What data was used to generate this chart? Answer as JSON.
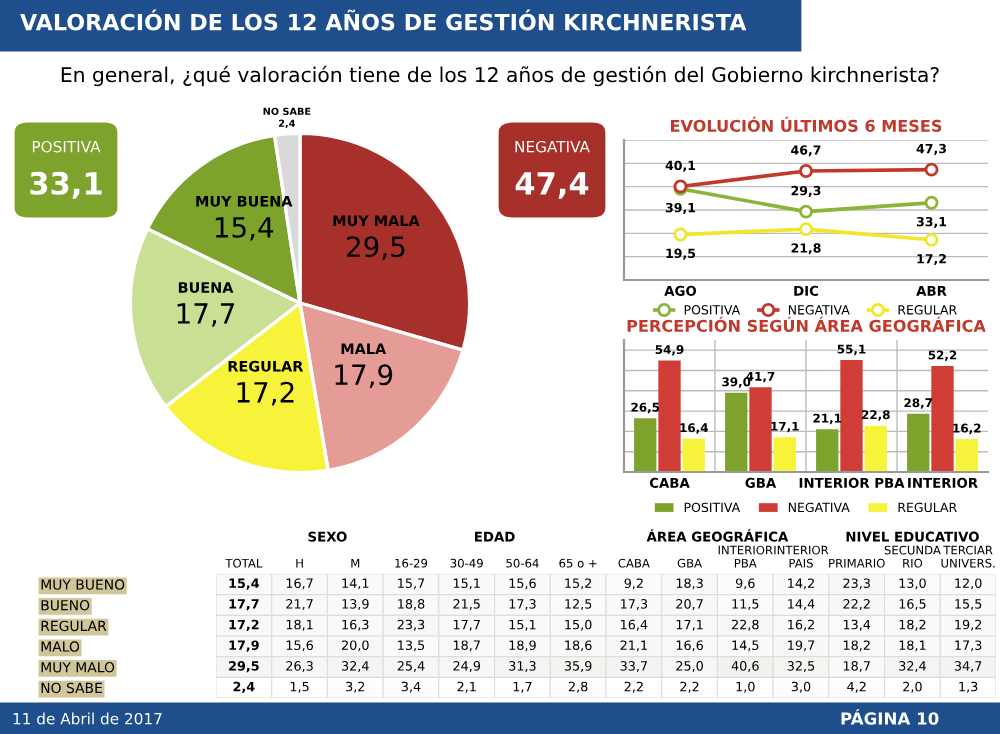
{
  "chart_data": [
    {
      "type": "pie",
      "title": "VALORACIÓN DE LOS 12 AÑOS DE GESTIÓN KIRCHNERISTA",
      "subtitle": "En general, ¿qué valoración tiene de los 12 años de gestión del Gobierno kirchnerista?",
      "categories": [
        "MUY MALA",
        "MALA",
        "REGULAR",
        "BUENA",
        "MUY BUENA",
        "NO SABE"
      ],
      "values": [
        29.5,
        17.9,
        17.2,
        17.7,
        15.4,
        2.4
      ],
      "value_labels": [
        "29,5",
        "17,9",
        "17,2",
        "17,7",
        "15,4",
        "2,4"
      ],
      "colors": [
        "#a8302a",
        "#e59c97",
        "#f7f23a",
        "#c8df94",
        "#7ea32c",
        "#d9d9d9"
      ],
      "annotations": [
        "POSITIVA",
        "33,1",
        "NEGATIVA",
        "47,4"
      ]
    },
    {
      "type": "line",
      "title": "EVOLUCIÓN ÚLTIMOS 6 MESES",
      "categories": [
        "AGO",
        "DIC",
        "ABR"
      ],
      "series": [
        {
          "name": "POSITIVA",
          "color": "#8db43a",
          "values": [
            39.1,
            29.3,
            33.1
          ],
          "value_labels": [
            "39,1",
            "29,3",
            "33,1"
          ]
        },
        {
          "name": "NEGATIVA",
          "color": "#c0392b",
          "values": [
            40.1,
            46.7,
            47.3
          ],
          "value_labels": [
            "40,1",
            "46,7",
            "47,3"
          ]
        },
        {
          "name": "REGULAR",
          "color": "#f2e52c",
          "values": [
            19.5,
            21.8,
            17.2
          ],
          "value_labels": [
            "19,5",
            "21,8",
            "17,2"
          ]
        }
      ],
      "ylim": [
        0,
        60
      ],
      "yticks": [
        {
          "value": 0,
          "label": null
        },
        {
          "value": 10,
          "label": null
        },
        {
          "value": 20,
          "label": null
        },
        {
          "value": 30,
          "label": null
        },
        {
          "value": 40,
          "label": null
        },
        {
          "value": 50,
          "label": null
        },
        {
          "value": 60,
          "label": null
        }
      ],
      "tick_labels": "x",
      "grid": "y",
      "legend": "bottom",
      "marker": "circle",
      "line_style": "solid"
    },
    {
      "type": "bar",
      "title": "PERCEPCIÓN SEGÚN ÁREA GEOGRÁFICA",
      "categories": [
        "CABA",
        "GBA",
        "INTERIOR PBA",
        "INTERIOR"
      ],
      "series": [
        {
          "name": "POSITIVA",
          "color": "#7ea32c",
          "values": [
            26.5,
            39.0,
            21.1,
            28.7
          ],
          "value_labels": [
            "26,5",
            "39,0",
            "21,1",
            "28,7"
          ]
        },
        {
          "name": "NEGATIVA",
          "color": "#d03c36",
          "values": [
            54.9,
            41.7,
            55.1,
            52.2
          ],
          "value_labels": [
            "54,9",
            "41,7",
            "55,1",
            "52,2"
          ]
        },
        {
          "name": "REGULAR",
          "color": "#f7f23a",
          "values": [
            16.4,
            17.1,
            22.8,
            16.2
          ],
          "value_labels": [
            "16,4",
            "17,1",
            "22,8",
            "16,2"
          ]
        }
      ],
      "ylim": [
        0,
        65
      ],
      "yticks": [
        {
          "value": 0,
          "label": null
        },
        {
          "value": 10,
          "label": null
        },
        {
          "value": 20,
          "label": null
        },
        {
          "value": 30,
          "label": null
        },
        {
          "value": 40,
          "label": null
        },
        {
          "value": 50,
          "label": null
        },
        {
          "value": 60,
          "label": null
        }
      ],
      "tick_labels": "x",
      "grid": "y",
      "legend": "bottom"
    },
    {
      "type": "heatmap",
      "categories": [
        "TOTAL",
        "H",
        "M",
        "16-29",
        "30-49",
        "50-64",
        "65 o +",
        "CABA",
        "GBA",
        "INTERIOR\nPBA",
        "INTERIOR\nPAIS",
        "PRIMARIO",
        "SECUNDA\nRIO",
        "TERCIAR\nUNIVERS."
      ],
      "y_categories": [
        "MUY BUENO",
        "BUENO",
        "REGULAR",
        "MALO",
        "MUY MALO",
        "NO SABE"
      ],
      "cells": [
        [
          15.4,
          16.7,
          14.1,
          15.7,
          15.1,
          15.6,
          15.2,
          9.2,
          18.3,
          9.6,
          14.2,
          23.3,
          13.0,
          12.0
        ],
        [
          17.7,
          21.7,
          13.9,
          18.8,
          21.5,
          17.3,
          12.5,
          17.3,
          20.7,
          11.5,
          14.4,
          22.2,
          16.5,
          15.5
        ],
        [
          17.2,
          18.1,
          16.3,
          23.3,
          17.7,
          15.1,
          15.0,
          16.4,
          17.1,
          22.8,
          16.2,
          13.4,
          18.2,
          19.2
        ],
        [
          17.9,
          15.6,
          20.0,
          13.5,
          18.7,
          18.9,
          18.6,
          21.1,
          16.6,
          14.5,
          19.7,
          18.2,
          18.1,
          17.3
        ],
        [
          29.5,
          26.3,
          32.4,
          25.4,
          24.9,
          31.3,
          35.9,
          33.7,
          25.0,
          40.6,
          32.5,
          18.7,
          32.4,
          34.7
        ],
        [
          2.4,
          1.5,
          3.2,
          3.4,
          2.1,
          1.7,
          2.8,
          2.2,
          2.2,
          1.0,
          3.0,
          4.2,
          2.0,
          1.3
        ]
      ],
      "cell_labels": [
        [
          "15,4",
          "16,7",
          "14,1",
          "15,7",
          "15,1",
          "15,6",
          "15,2",
          "9,2",
          "18,3",
          "9,6",
          "14,2",
          "23,3",
          "13,0",
          "12,0"
        ],
        [
          "17,7",
          "21,7",
          "13,9",
          "18,8",
          "21,5",
          "17,3",
          "12,5",
          "17,3",
          "20,7",
          "11,5",
          "14,4",
          "22,2",
          "16,5",
          "15,5"
        ],
        [
          "17,2",
          "18,1",
          "16,3",
          "23,3",
          "17,7",
          "15,1",
          "15,0",
          "16,4",
          "17,1",
          "22,8",
          "16,2",
          "13,4",
          "18,2",
          "19,2"
        ],
        [
          "17,9",
          "15,6",
          "20,0",
          "13,5",
          "18,7",
          "18,9",
          "18,6",
          "21,1",
          "16,6",
          "14,5",
          "19,7",
          "18,2",
          "18,1",
          "17,3"
        ],
        [
          "29,5",
          "26,3",
          "32,4",
          "25,4",
          "24,9",
          "31,3",
          "35,9",
          "33,7",
          "25,0",
          "40,6",
          "32,5",
          "18,7",
          "32,4",
          "34,7"
        ],
        [
          "2,4",
          "1,5",
          "3,2",
          "3,4",
          "2,1",
          "1,7",
          "2,8",
          "2,2",
          "2,2",
          "1,0",
          "3,0",
          "4,2",
          "2,0",
          "1,3"
        ]
      ],
      "annotations": [
        "SEXO",
        "EDAD",
        "ÁREA GEOGRÁFICA",
        "NIVEL EDUCATIVO",
        "11 de Abril de 2017",
        "PÁGINA 10"
      ]
    }
  ]
}
